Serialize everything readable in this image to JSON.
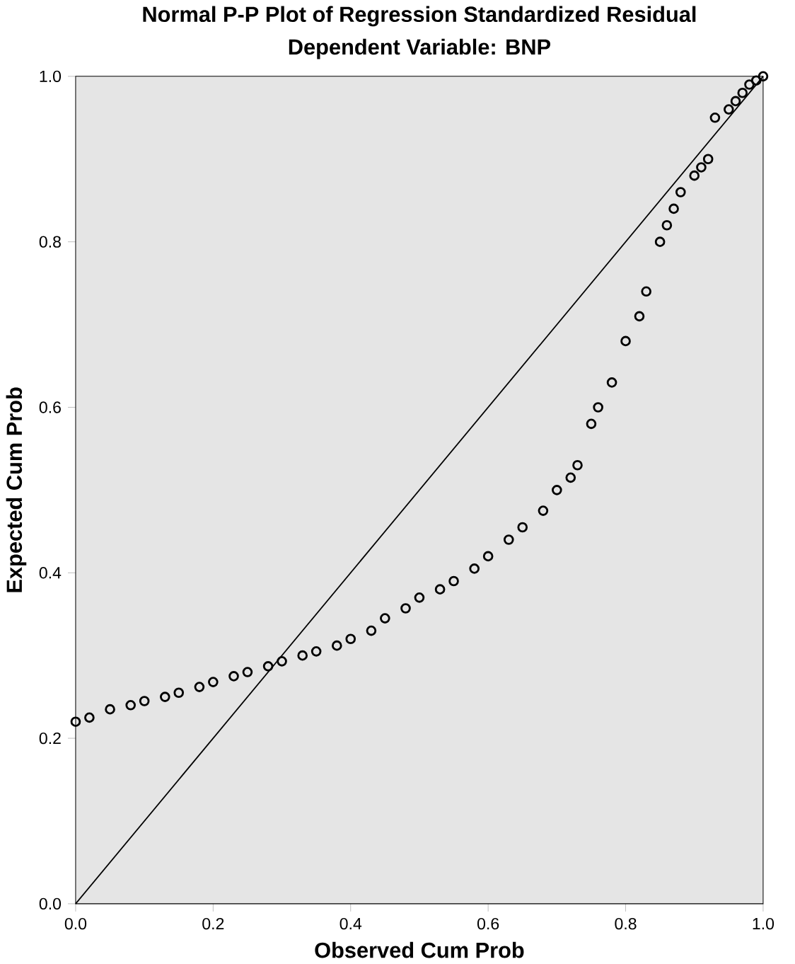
{
  "chart_data": {
    "type": "scatter",
    "title": "Normal P-P Plot of Regression Standardized Residual",
    "subtitle": "Dependent Variable: BNP",
    "xlabel": "Observed Cum Prob",
    "ylabel": "Expected Cum Prob",
    "xlim": [
      0,
      1
    ],
    "ylim": [
      0,
      1
    ],
    "xticks": [
      {
        "value": 0,
        "label": "0.0"
      },
      {
        "value": 0.2,
        "label": "0.2"
      },
      {
        "value": 0.4,
        "label": "0.4"
      },
      {
        "value": 0.6,
        "label": "0.6"
      },
      {
        "value": 0.8,
        "label": "0.8"
      },
      {
        "value": 1,
        "label": "1.0"
      }
    ],
    "yticks": [
      {
        "value": 0,
        "label": "0.0"
      },
      {
        "value": 0.2,
        "label": "0.2"
      },
      {
        "value": 0.4,
        "label": "0.4"
      },
      {
        "value": 0.6,
        "label": "0.6"
      },
      {
        "value": 0.8,
        "label": "0.8"
      },
      {
        "value": 1,
        "label": "1.0"
      }
    ],
    "marker": "circle",
    "grid": false,
    "series": [
      {
        "type": "line",
        "marker": "none",
        "color": "#000000",
        "x": [
          0,
          1
        ],
        "values": [
          0,
          1
        ]
      },
      {
        "color": "#000000",
        "x": [
          0,
          0.02,
          0.05,
          0.08,
          0.1,
          0.13,
          0.15,
          0.18,
          0.2,
          0.23,
          0.25,
          0.28,
          0.3,
          0.33,
          0.35,
          0.38,
          0.4,
          0.43,
          0.45,
          0.48,
          0.5,
          0.53,
          0.55,
          0.58,
          0.6,
          0.63,
          0.65,
          0.68,
          0.7,
          0.72,
          0.73,
          0.75,
          0.76,
          0.78,
          0.8,
          0.82,
          0.83,
          0.85,
          0.86,
          0.87,
          0.88,
          0.9,
          0.91,
          0.92,
          0.93,
          0.95,
          0.96,
          0.97,
          0.98,
          0.99,
          1
        ],
        "values": [
          0.22,
          0.225,
          0.235,
          0.24,
          0.245,
          0.25,
          0.255,
          0.262,
          0.268,
          0.275,
          0.28,
          0.287,
          0.293,
          0.3,
          0.305,
          0.312,
          0.32,
          0.33,
          0.345,
          0.357,
          0.37,
          0.38,
          0.39,
          0.405,
          0.42,
          0.44,
          0.455,
          0.475,
          0.5,
          0.515,
          0.53,
          0.58,
          0.6,
          0.63,
          0.68,
          0.71,
          0.74,
          0.8,
          0.82,
          0.84,
          0.86,
          0.88,
          0.89,
          0.9,
          0.95,
          0.96,
          0.97,
          0.98,
          0.99,
          0.995,
          1.0
        ]
      }
    ]
  }
}
